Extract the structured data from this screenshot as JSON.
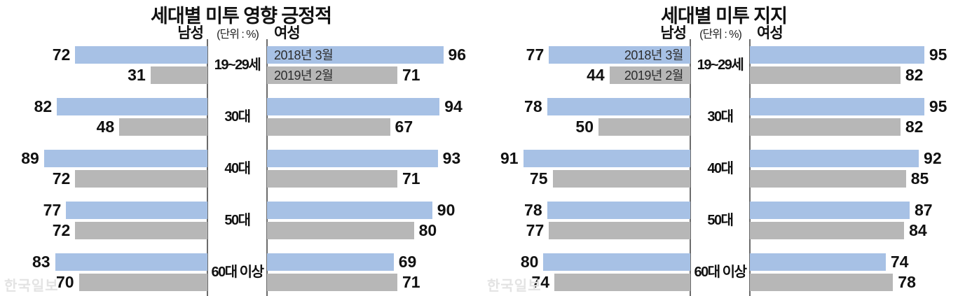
{
  "colors": {
    "series_2018": "#a7c1e5",
    "series_2019": "#b7b7b7",
    "axis_line": "#6b6b6b",
    "value_text": "#111111",
    "watermark_text": "#e3e3e3"
  },
  "watermark": "한국일보",
  "chart_data": [
    {
      "type": "bar",
      "orientation": "horizontal-butterfly",
      "title": "세대별 미투 영향 긍정적",
      "male_label": "남성",
      "female_label": "여성",
      "unit_label": "(단위 : %)",
      "legend": [
        "2018년 3월",
        "2019년 2월"
      ],
      "legend_placed_in": "female-bars",
      "categories": [
        "19~29세",
        "30대",
        "40대",
        "50대",
        "60대 이상"
      ],
      "male": {
        "y2018": [
          72,
          82,
          89,
          77,
          83
        ],
        "y2019": [
          31,
          48,
          72,
          72,
          70
        ]
      },
      "female": {
        "y2018": [
          96,
          94,
          93,
          90,
          69
        ],
        "y2019": [
          71,
          67,
          71,
          80,
          71
        ]
      },
      "xlim": [
        0,
        100
      ]
    },
    {
      "type": "bar",
      "orientation": "horizontal-butterfly",
      "title": "세대별 미투 지지",
      "male_label": "남성",
      "female_label": "여성",
      "unit_label": "(단위 : %)",
      "legend": [
        "2018년 3월",
        "2019년 2월"
      ],
      "legend_placed_in": "male-bars",
      "categories": [
        "19~29세",
        "30대",
        "40대",
        "50대",
        "60대 이상"
      ],
      "male": {
        "y2018": [
          77,
          78,
          91,
          78,
          80
        ],
        "y2019": [
          44,
          50,
          75,
          77,
          74
        ]
      },
      "female": {
        "y2018": [
          95,
          95,
          92,
          87,
          74
        ],
        "y2019": [
          82,
          82,
          85,
          84,
          78
        ]
      },
      "xlim": [
        0,
        100
      ]
    }
  ]
}
